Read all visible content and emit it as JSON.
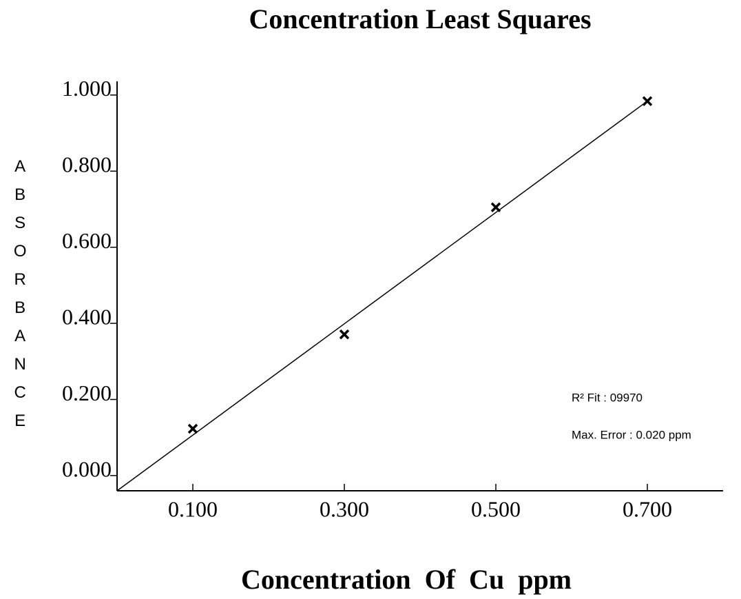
{
  "chart_data": {
    "type": "scatter",
    "title": "Concentration Least Squares",
    "x_label": "Concentration Of Cu ppm",
    "y_label": "ABSORBANCE",
    "x": [
      0.1,
      0.3,
      0.5,
      0.7
    ],
    "values": [
      0.123,
      0.371,
      0.705,
      0.984
    ],
    "color": "#000000",
    "fit_line": {
      "x": [
        0,
        0.7
      ],
      "y": [
        -0.04,
        0.984
      ]
    },
    "xlim": [
      0,
      0.8
    ],
    "ylim": [
      -0.04,
      1.036
    ],
    "xticks": [
      {
        "value": 0.1,
        "label": "0.100"
      },
      {
        "value": 0.3,
        "label": "0.300"
      },
      {
        "value": 0.5,
        "label": "0.500"
      },
      {
        "value": 0.7,
        "label": "0.700"
      }
    ],
    "yticks": [
      {
        "value": 0,
        "label": "0.000"
      },
      {
        "value": 0.2,
        "label": "0.200"
      },
      {
        "value": 0.4,
        "label": "0.400"
      },
      {
        "value": 0.6,
        "label": "0.600"
      },
      {
        "value": 0.8,
        "label": "0.800"
      },
      {
        "value": 1,
        "label": "1.000"
      }
    ],
    "annotations": [
      "R² Fit : 09970",
      "Max. Error : 0.020 ppm"
    ],
    "grid": false
  }
}
